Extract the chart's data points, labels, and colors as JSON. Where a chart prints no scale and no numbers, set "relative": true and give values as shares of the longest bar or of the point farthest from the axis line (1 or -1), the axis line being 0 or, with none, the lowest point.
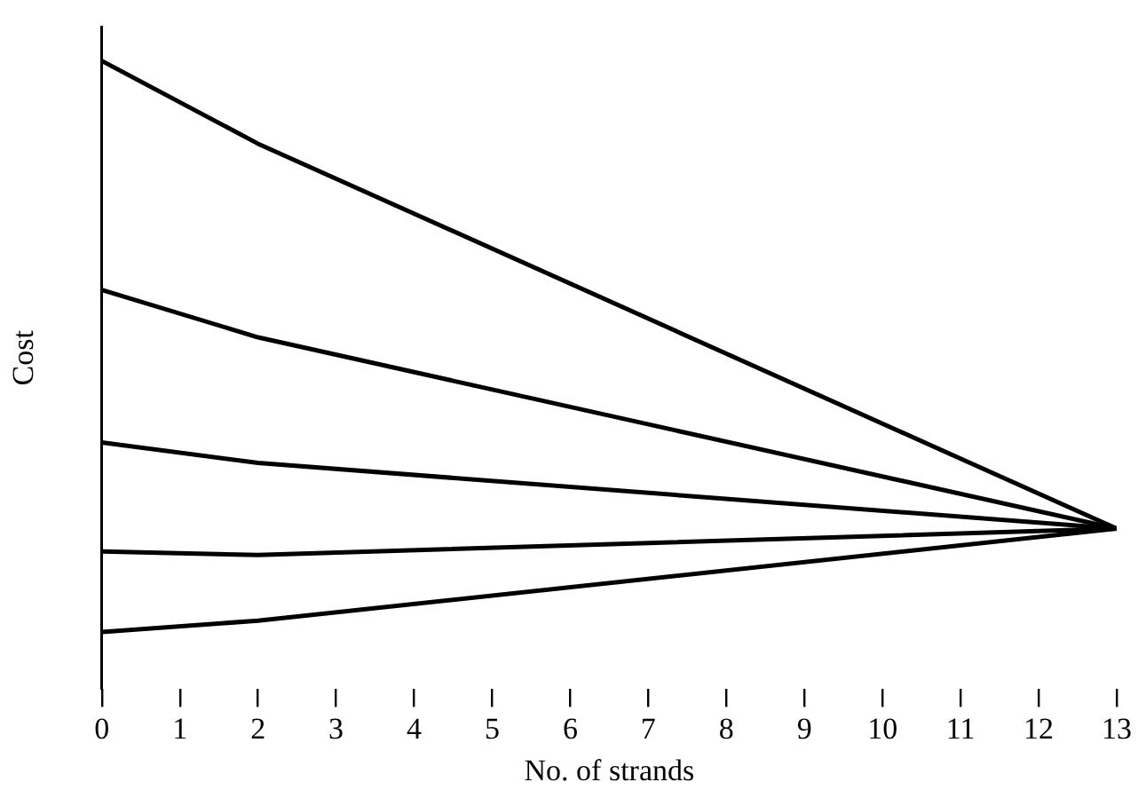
{
  "chart_data": {
    "type": "line",
    "relative": true,
    "xlabel": "No. of strands",
    "ylabel": "Cost",
    "xlim": [
      0,
      13
    ],
    "xticks": [
      0,
      1,
      2,
      3,
      4,
      5,
      6,
      7,
      8,
      9,
      10,
      11,
      12,
      13
    ],
    "grid": false,
    "legend": false,
    "marker": "none",
    "line_style": "solid",
    "series": [
      {
        "color": "#000000",
        "x": [
          0,
          2,
          13
        ],
        "values": [
          1,
          0.855,
          0.181
        ]
      },
      {
        "color": "#000000",
        "x": [
          0,
          2,
          13
        ],
        "values": [
          0.599,
          0.516,
          0.181
        ]
      },
      {
        "color": "#000000",
        "x": [
          0,
          2,
          13
        ],
        "values": [
          0.332,
          0.296,
          0.181
        ]
      },
      {
        "color": "#000000",
        "x": [
          0,
          2,
          13
        ],
        "values": [
          0.141,
          0.135,
          0.181
        ]
      },
      {
        "color": "#000000",
        "x": [
          0,
          2,
          13
        ],
        "values": [
          0,
          0.02,
          0.181
        ]
      }
    ]
  }
}
